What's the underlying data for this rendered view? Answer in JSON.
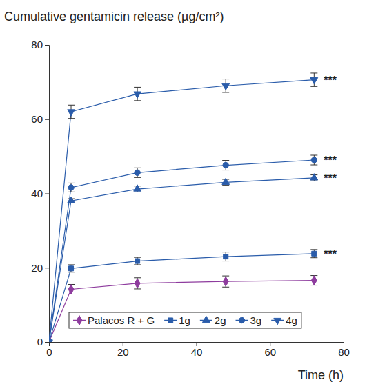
{
  "chart_data": {
    "type": "line",
    "title": "Cumulative gentamicin release (µg/cm²)",
    "x_label": "Time (h)",
    "x": [
      0,
      6,
      24,
      48,
      72
    ],
    "xlim": [
      0,
      80
    ],
    "xticks": [
      0,
      20,
      40,
      60,
      80
    ],
    "ylim": [
      0,
      80
    ],
    "yticks": [
      0,
      20,
      40,
      60,
      80
    ],
    "grid": false,
    "legend": "bottom",
    "series": [
      {
        "name": "Palacos R + G",
        "color": "#8e3c9e",
        "marker": "diamond",
        "values": [
          0,
          14.2,
          15.8,
          16.3,
          16.6
        ],
        "errors": [
          0,
          1.3,
          1.5,
          1.5,
          1.3
        ]
      },
      {
        "name": "1g",
        "color": "#2a5caa",
        "marker": "square",
        "values": [
          0,
          19.8,
          21.8,
          23.0,
          23.8
        ],
        "errors": [
          0,
          1.0,
          1.0,
          1.2,
          1.1
        ],
        "annotation": "***"
      },
      {
        "name": "2g",
        "color": "#2a5caa",
        "marker": "triangle",
        "values": [
          0,
          38.0,
          41.2,
          43.0,
          44.2
        ],
        "errors": [
          0,
          0.6,
          0.8,
          0.8,
          0.8
        ],
        "annotation": "***"
      },
      {
        "name": "3g",
        "color": "#2a5caa",
        "marker": "circle",
        "values": [
          0,
          41.6,
          45.6,
          47.6,
          49.0
        ],
        "errors": [
          0,
          1.2,
          1.3,
          1.3,
          1.3
        ],
        "annotation": "***"
      },
      {
        "name": "4g",
        "color": "#2a5caa",
        "marker": "triangle-down",
        "values": [
          0,
          62.0,
          66.8,
          69.0,
          70.6
        ],
        "errors": [
          0,
          1.8,
          1.8,
          1.8,
          1.8
        ],
        "annotation": "***"
      }
    ]
  }
}
